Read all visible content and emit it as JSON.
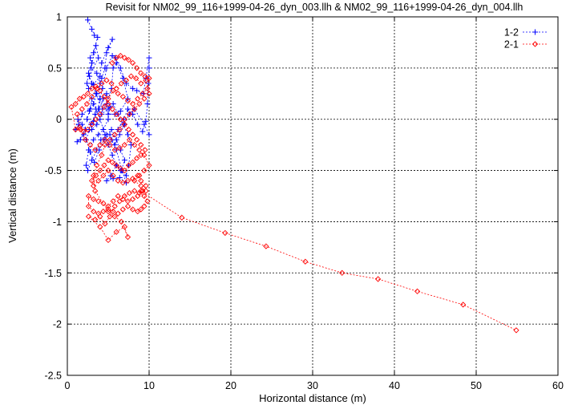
{
  "chart_data": {
    "type": "line",
    "title": "Revisit for NM02_99_116+1999-04-26_dyn_003.llh & NM02_99_116+1999-04-26_dyn_004.llh",
    "xlabel": "Horizontal distance (m)",
    "ylabel": "Vertical distance (m)",
    "xlim": [
      0,
      60
    ],
    "ylim": [
      -2.5,
      1
    ],
    "xticks": [
      0,
      10,
      20,
      30,
      40,
      50,
      60
    ],
    "yticks": [
      -2.5,
      -2,
      -1.5,
      -1,
      -0.5,
      0,
      0.5,
      1
    ],
    "grid": true,
    "legend": "top-right",
    "series": [
      {
        "name": "1-2",
        "color": "#0000ff",
        "marker": "plus",
        "points": [
          [
            2.5,
            0.97
          ],
          [
            3.0,
            0.88
          ],
          [
            3.3,
            0.82
          ],
          [
            3.7,
            0.8
          ],
          [
            3.2,
            0.65
          ],
          [
            2.8,
            0.6
          ],
          [
            3.0,
            0.55
          ],
          [
            2.6,
            0.45
          ],
          [
            2.4,
            0.35
          ],
          [
            2.6,
            0.3
          ],
          [
            3.2,
            0.34
          ],
          [
            4.0,
            0.42
          ],
          [
            4.2,
            0.55
          ],
          [
            5.0,
            0.7
          ],
          [
            5.5,
            0.78
          ],
          [
            4.8,
            0.65
          ],
          [
            4.6,
            0.5
          ],
          [
            4.2,
            0.4
          ],
          [
            3.6,
            0.25
          ],
          [
            3.2,
            0.15
          ],
          [
            2.7,
            0.08
          ],
          [
            2.4,
            0.0
          ],
          [
            2.9,
            -0.05
          ],
          [
            3.4,
            0.05
          ],
          [
            3.9,
            0.1
          ],
          [
            4.4,
            0.2
          ],
          [
            4.8,
            0.25
          ],
          [
            5.2,
            0.12
          ],
          [
            5.0,
            0.0
          ],
          [
            4.4,
            -0.1
          ],
          [
            3.8,
            -0.15
          ],
          [
            3.2,
            -0.2
          ],
          [
            2.6,
            -0.3
          ],
          [
            2.3,
            -0.45
          ],
          [
            2.5,
            -0.5
          ],
          [
            3.0,
            -0.4
          ],
          [
            3.6,
            -0.3
          ],
          [
            4.1,
            -0.2
          ],
          [
            4.8,
            -0.15
          ],
          [
            5.4,
            -0.1
          ],
          [
            6.0,
            -0.2
          ],
          [
            6.5,
            -0.3
          ],
          [
            7.0,
            -0.4
          ],
          [
            6.6,
            -0.5
          ],
          [
            6.0,
            -0.45
          ],
          [
            5.5,
            -0.35
          ],
          [
            5.0,
            -0.25
          ],
          [
            4.6,
            -0.15
          ],
          [
            4.0,
            0.0
          ],
          [
            3.5,
            0.1
          ],
          [
            3.0,
            0.2
          ],
          [
            2.8,
            0.1
          ],
          [
            1.8,
            0.05
          ],
          [
            1.4,
            -0.05
          ],
          [
            1.0,
            -0.1
          ],
          [
            1.3,
            0.0
          ],
          [
            1.8,
            -0.05
          ],
          [
            2.2,
            -0.1
          ],
          [
            1.6,
            -0.2
          ],
          [
            1.2,
            -0.22
          ],
          [
            2.0,
            -0.15
          ],
          [
            3.0,
            -0.1
          ],
          [
            3.6,
            -0.05
          ],
          [
            4.2,
            0.05
          ],
          [
            5.0,
            0.1
          ],
          [
            5.6,
            0.15
          ],
          [
            6.2,
            0.05
          ],
          [
            6.8,
            -0.05
          ],
          [
            7.4,
            -0.15
          ],
          [
            7.8,
            -0.25
          ],
          [
            7.5,
            -0.45
          ],
          [
            7.2,
            -0.55
          ],
          [
            6.5,
            -0.5
          ],
          [
            6.0,
            -0.45
          ],
          [
            5.3,
            -0.55
          ],
          [
            4.8,
            -0.6
          ],
          [
            5.6,
            -0.58
          ],
          [
            6.4,
            -0.57
          ],
          [
            7.2,
            -0.62
          ],
          [
            6.7,
            -0.5
          ],
          [
            6.0,
            -0.3
          ],
          [
            5.4,
            -0.2
          ],
          [
            6.2,
            -0.1
          ],
          [
            6.9,
            0.0
          ],
          [
            7.4,
            0.1
          ],
          [
            8.0,
            0.05
          ],
          [
            8.6,
            -0.05
          ],
          [
            9.2,
            -0.12
          ],
          [
            9.6,
            -0.02
          ],
          [
            9.8,
            0.15
          ],
          [
            9.9,
            0.35
          ],
          [
            10.0,
            0.5
          ],
          [
            10.0,
            0.6
          ],
          [
            9.6,
            0.4
          ],
          [
            9.3,
            0.25
          ],
          [
            8.5,
            0.28
          ],
          [
            8.0,
            0.3
          ],
          [
            7.2,
            0.35
          ],
          [
            6.5,
            0.5
          ],
          [
            5.9,
            0.6
          ],
          [
            5.5,
            0.62
          ],
          [
            4.8,
            0.5
          ],
          [
            4.3,
            0.3
          ],
          [
            4.0,
            0.2
          ],
          [
            5.0,
            0.05
          ],
          [
            5.8,
            0.05
          ],
          [
            6.5,
            0.08
          ],
          [
            7.4,
            0.2
          ],
          [
            6.8,
            0.4
          ],
          [
            6.0,
            0.55
          ],
          [
            5.6,
            0.5
          ],
          [
            5.4,
            0.3
          ],
          [
            4.8,
            0.15
          ],
          [
            4.3,
            0.1
          ],
          [
            3.5,
            0.25
          ],
          [
            3.0,
            0.35
          ],
          [
            2.7,
            0.42
          ],
          [
            3.8,
            0.6
          ],
          [
            3.5,
            0.72
          ],
          [
            2.9,
            0.5
          ],
          [
            3.6,
            0.45
          ],
          [
            4.0,
            0.35
          ],
          [
            3.8,
            0.1
          ],
          [
            3.2,
            -0.02
          ],
          [
            2.7,
            -0.1
          ],
          [
            2.3,
            -0.2
          ],
          [
            2.8,
            -0.32
          ],
          [
            3.3,
            -0.42
          ],
          [
            3.9,
            -0.3
          ],
          [
            4.5,
            -0.2
          ],
          [
            5.2,
            -0.15
          ],
          [
            5.8,
            -0.25
          ],
          [
            6.4,
            -0.15
          ],
          [
            7.0,
            -0.05
          ],
          [
            7.6,
            0.05
          ],
          [
            8.2,
            0.1
          ],
          [
            9.4,
            -0.05
          ],
          [
            10.0,
            -0.15
          ]
        ]
      },
      {
        "name": "2-1",
        "color": "#ff0000",
        "marker": "diamond",
        "points": [
          [
            5.5,
            0.55
          ],
          [
            6.0,
            0.6
          ],
          [
            6.5,
            0.62
          ],
          [
            7.0,
            0.6
          ],
          [
            7.5,
            0.58
          ],
          [
            8.0,
            0.55
          ],
          [
            8.5,
            0.5
          ],
          [
            9.0,
            0.45
          ],
          [
            9.5,
            0.42
          ],
          [
            10.0,
            0.4
          ],
          [
            9.8,
            0.3
          ],
          [
            9.2,
            0.25
          ],
          [
            8.6,
            0.2
          ],
          [
            8.0,
            0.15
          ],
          [
            7.4,
            0.18
          ],
          [
            6.8,
            0.22
          ],
          [
            6.2,
            0.25
          ],
          [
            5.6,
            0.28
          ],
          [
            5.0,
            0.2
          ],
          [
            4.5,
            0.12
          ],
          [
            4.0,
            0.05
          ],
          [
            3.5,
            0.0
          ],
          [
            3.0,
            -0.05
          ],
          [
            2.5,
            -0.1
          ],
          [
            2.0,
            -0.12
          ],
          [
            1.5,
            -0.08
          ],
          [
            1.0,
            -0.1
          ],
          [
            0.5,
            0.12
          ],
          [
            1.0,
            0.15
          ],
          [
            1.5,
            0.2
          ],
          [
            2.0,
            0.22
          ],
          [
            2.5,
            0.25
          ],
          [
            3.0,
            0.3
          ],
          [
            3.5,
            0.32
          ],
          [
            4.0,
            0.28
          ],
          [
            4.5,
            0.22
          ],
          [
            5.0,
            0.15
          ],
          [
            5.5,
            0.1
          ],
          [
            6.0,
            0.05
          ],
          [
            6.5,
            0.0
          ],
          [
            7.0,
            -0.05
          ],
          [
            7.5,
            -0.1
          ],
          [
            8.0,
            -0.15
          ],
          [
            8.5,
            -0.2
          ],
          [
            9.0,
            -0.25
          ],
          [
            9.5,
            -0.3
          ],
          [
            9.0,
            -0.35
          ],
          [
            8.5,
            -0.38
          ],
          [
            8.0,
            -0.42
          ],
          [
            7.5,
            -0.45
          ],
          [
            7.0,
            -0.5
          ],
          [
            6.5,
            -0.48
          ],
          [
            6.0,
            -0.45
          ],
          [
            5.5,
            -0.42
          ],
          [
            5.0,
            -0.4
          ],
          [
            4.5,
            -0.45
          ],
          [
            4.0,
            -0.5
          ],
          [
            3.5,
            -0.55
          ],
          [
            3.0,
            -0.6
          ],
          [
            3.2,
            -0.65
          ],
          [
            3.8,
            -0.6
          ],
          [
            4.4,
            -0.55
          ],
          [
            5.0,
            -0.5
          ],
          [
            5.6,
            -0.55
          ],
          [
            6.2,
            -0.6
          ],
          [
            6.8,
            -0.62
          ],
          [
            7.4,
            -0.6
          ],
          [
            8.0,
            -0.58
          ],
          [
            8.6,
            -0.55
          ],
          [
            9.0,
            -0.6
          ],
          [
            9.6,
            -0.65
          ],
          [
            9.2,
            -0.7
          ],
          [
            8.6,
            -0.75
          ],
          [
            8.0,
            -0.78
          ],
          [
            7.4,
            -0.8
          ],
          [
            6.8,
            -0.78
          ],
          [
            6.2,
            -0.75
          ],
          [
            5.6,
            -0.8
          ],
          [
            5.0,
            -0.85
          ],
          [
            4.4,
            -0.82
          ],
          [
            3.8,
            -0.8
          ],
          [
            3.2,
            -0.78
          ],
          [
            2.6,
            -0.75
          ],
          [
            2.6,
            -0.85
          ],
          [
            3.2,
            -0.9
          ],
          [
            3.8,
            -0.92
          ],
          [
            4.4,
            -0.9
          ],
          [
            5.0,
            -0.88
          ],
          [
            5.6,
            -0.9
          ],
          [
            6.2,
            -0.92
          ],
          [
            6.8,
            -0.88
          ],
          [
            7.4,
            -0.85
          ],
          [
            8.0,
            -0.88
          ],
          [
            8.6,
            -0.9
          ],
          [
            9.0,
            -0.88
          ],
          [
            9.4,
            -0.85
          ],
          [
            9.8,
            -0.8
          ],
          [
            9.4,
            -0.75
          ],
          [
            8.8,
            -0.72
          ],
          [
            8.2,
            -0.7
          ],
          [
            7.6,
            -0.72
          ],
          [
            7.0,
            -0.75
          ],
          [
            6.4,
            -0.8
          ],
          [
            5.8,
            -0.85
          ],
          [
            5.2,
            -0.95
          ],
          [
            4.6,
            -1.02
          ],
          [
            4.0,
            -0.95
          ],
          [
            3.4,
            -0.98
          ],
          [
            2.6,
            -0.95
          ],
          [
            4.0,
            -1.05
          ],
          [
            5.0,
            -1.18
          ],
          [
            6.0,
            -1.1
          ],
          [
            7.0,
            -1.05
          ],
          [
            7.4,
            -1.15
          ],
          [
            6.6,
            -1.0
          ],
          [
            5.8,
            -0.95
          ],
          [
            5.0,
            -0.9
          ],
          [
            3.4,
            -0.7
          ],
          [
            3.2,
            -0.55
          ],
          [
            3.6,
            -0.45
          ],
          [
            4.2,
            -0.35
          ],
          [
            4.6,
            -0.25
          ],
          [
            5.2,
            -0.2
          ],
          [
            5.8,
            -0.15
          ],
          [
            6.4,
            -0.1
          ],
          [
            7.0,
            0.0
          ],
          [
            7.6,
            0.05
          ],
          [
            8.2,
            0.1
          ],
          [
            8.8,
            0.15
          ],
          [
            9.4,
            0.2
          ],
          [
            10.0,
            0.25
          ],
          [
            9.6,
            0.38
          ],
          [
            9.0,
            0.35
          ],
          [
            8.4,
            0.4
          ],
          [
            7.8,
            0.42
          ],
          [
            7.2,
            0.38
          ],
          [
            6.6,
            0.35
          ],
          [
            6.0,
            0.3
          ],
          [
            5.4,
            0.35
          ],
          [
            4.8,
            0.38
          ],
          [
            4.2,
            0.35
          ],
          [
            3.6,
            0.3
          ],
          [
            3.0,
            0.22
          ],
          [
            2.4,
            0.15
          ],
          [
            1.8,
            0.1
          ],
          [
            1.2,
            0.05
          ],
          [
            1.6,
            -0.1
          ],
          [
            2.2,
            -0.2
          ],
          [
            2.8,
            -0.25
          ],
          [
            3.4,
            -0.3
          ],
          [
            4.0,
            -0.25
          ],
          [
            4.6,
            -0.2
          ],
          [
            5.2,
            -0.25
          ],
          [
            5.8,
            -0.3
          ],
          [
            6.4,
            -0.28
          ],
          [
            7.0,
            -0.25
          ],
          [
            7.6,
            -0.2
          ],
          [
            8.2,
            -0.25
          ],
          [
            8.8,
            -0.3
          ],
          [
            9.4,
            -0.35
          ],
          [
            10.0,
            -0.45
          ],
          [
            9.4,
            -0.5
          ],
          [
            8.8,
            -0.55
          ],
          [
            8.2,
            -0.6
          ],
          [
            9.0,
            -0.65
          ],
          [
            9.6,
            -0.7
          ],
          [
            9.0,
            -0.7
          ],
          [
            14.0,
            -0.96
          ],
          [
            19.3,
            -1.11
          ],
          [
            24.3,
            -1.24
          ],
          [
            29.1,
            -1.39
          ],
          [
            33.6,
            -1.5
          ],
          [
            38.0,
            -1.56
          ],
          [
            42.8,
            -1.68
          ],
          [
            48.4,
            -1.81
          ],
          [
            54.9,
            -2.06
          ]
        ]
      }
    ]
  }
}
